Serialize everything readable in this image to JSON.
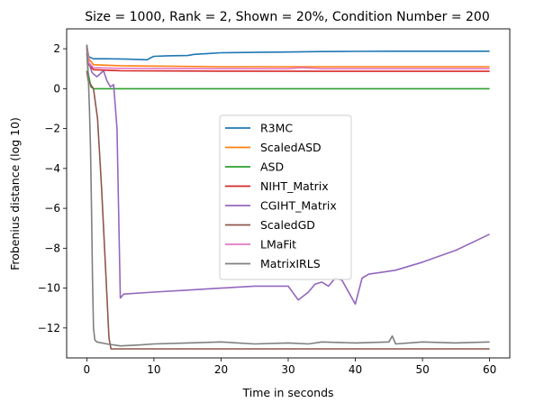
{
  "chart_data": {
    "type": "line",
    "title": "Size = 1000, Rank = 2, Shown = 20%, Condition Number = 200",
    "xlabel": "Time in seconds",
    "ylabel": "Frobenius distance (log 10)",
    "xlim": [
      -3,
      63
    ],
    "ylim": [
      -13.5,
      3
    ],
    "xticks": [
      0,
      10,
      20,
      30,
      40,
      50,
      60
    ],
    "yticks": [
      2,
      0,
      -2,
      -4,
      -6,
      -8,
      -10,
      -12
    ],
    "ytick_labels": [
      "2",
      "0",
      "−2",
      "−4",
      "−6",
      "−8",
      "−10",
      "−12"
    ],
    "grid": false,
    "legend_position": "center",
    "series": [
      {
        "name": "R3MC",
        "color": "#1f77b4",
        "x": [
          0,
          0.3,
          1,
          3,
          6,
          9,
          9.5,
          10,
          12,
          15,
          16,
          18,
          20,
          25,
          30,
          35,
          40,
          45,
          50,
          55,
          60
        ],
        "y": [
          2.1,
          1.6,
          1.5,
          1.5,
          1.48,
          1.45,
          1.55,
          1.62,
          1.65,
          1.66,
          1.72,
          1.76,
          1.8,
          1.82,
          1.84,
          1.86,
          1.87,
          1.88,
          1.88,
          1.88,
          1.88
        ]
      },
      {
        "name": "ScaledASD",
        "color": "#ff7f0e",
        "x": [
          0,
          0.3,
          1,
          5,
          20,
          40,
          60
        ],
        "y": [
          2.2,
          1.5,
          1.2,
          1.15,
          1.1,
          1.1,
          1.1
        ]
      },
      {
        "name": "ASD",
        "color": "#2ca02c",
        "x": [
          0,
          0.2,
          0.6,
          1,
          60
        ],
        "y": [
          1.8,
          0.8,
          0.1,
          0.0,
          0.0
        ]
      },
      {
        "name": "NIHT_Matrix",
        "color": "#d62728",
        "x": [
          0,
          0.3,
          1,
          5,
          20,
          40,
          60
        ],
        "y": [
          2.0,
          1.2,
          0.95,
          0.9,
          0.88,
          0.87,
          0.87
        ]
      },
      {
        "name": "CGIHT_Matrix",
        "color": "#9467bd",
        "x": [
          0,
          0.3,
          0.8,
          1.5,
          2.5,
          3,
          3.5,
          4.0,
          4.5,
          5,
          5.5,
          10,
          15,
          20,
          25,
          30,
          31.5,
          33,
          34,
          35,
          36,
          37,
          38,
          40,
          41,
          42,
          44,
          46,
          50,
          55,
          60
        ],
        "y": [
          2.2,
          1.3,
          0.8,
          0.6,
          0.9,
          0.4,
          0.1,
          0.2,
          -2.0,
          -10.5,
          -10.3,
          -10.2,
          -10.1,
          -10.0,
          -9.9,
          -9.9,
          -10.6,
          -10.2,
          -9.8,
          -9.7,
          -9.9,
          -9.5,
          -9.6,
          -10.8,
          -9.5,
          -9.3,
          -9.2,
          -9.1,
          -8.7,
          -8.1,
          -7.3
        ]
      },
      {
        "name": "ScaledGD",
        "color": "#8c564b",
        "x": [
          0,
          0.2,
          0.6,
          1,
          1.6,
          2.2,
          2.8,
          3.3,
          3.6,
          10,
          20,
          30,
          40,
          50,
          60
        ],
        "y": [
          0.9,
          0.4,
          0.2,
          0.0,
          -1.5,
          -5.0,
          -9.0,
          -12.5,
          -13.05,
          -13.05,
          -13.05,
          -13.05,
          -13.05,
          -13.05,
          -13.05
        ]
      },
      {
        "name": "LMaFit",
        "color": "#e377c2",
        "x": [
          0,
          0.3,
          1,
          5,
          20,
          30,
          32,
          35,
          60
        ],
        "y": [
          2.1,
          1.3,
          1.05,
          1.02,
          1.0,
          1.0,
          1.05,
          1.0,
          1.0
        ]
      },
      {
        "name": "MatrixIRLS",
        "color": "#7f7f7f",
        "x": [
          0,
          0.1,
          0.25,
          0.4,
          0.55,
          0.7,
          0.85,
          1.0,
          1.2,
          1.5,
          3,
          5,
          8,
          10,
          15,
          20,
          25,
          30,
          33,
          35,
          40,
          45,
          45.5,
          46,
          50,
          55,
          60
        ],
        "y": [
          2.2,
          1.3,
          0.4,
          -1.0,
          -3.0,
          -6.0,
          -9.5,
          -12.0,
          -12.6,
          -12.7,
          -12.8,
          -12.9,
          -12.85,
          -12.8,
          -12.75,
          -12.7,
          -12.8,
          -12.75,
          -12.8,
          -12.7,
          -12.75,
          -12.7,
          -12.4,
          -12.8,
          -12.7,
          -12.75,
          -12.7
        ]
      }
    ]
  }
}
